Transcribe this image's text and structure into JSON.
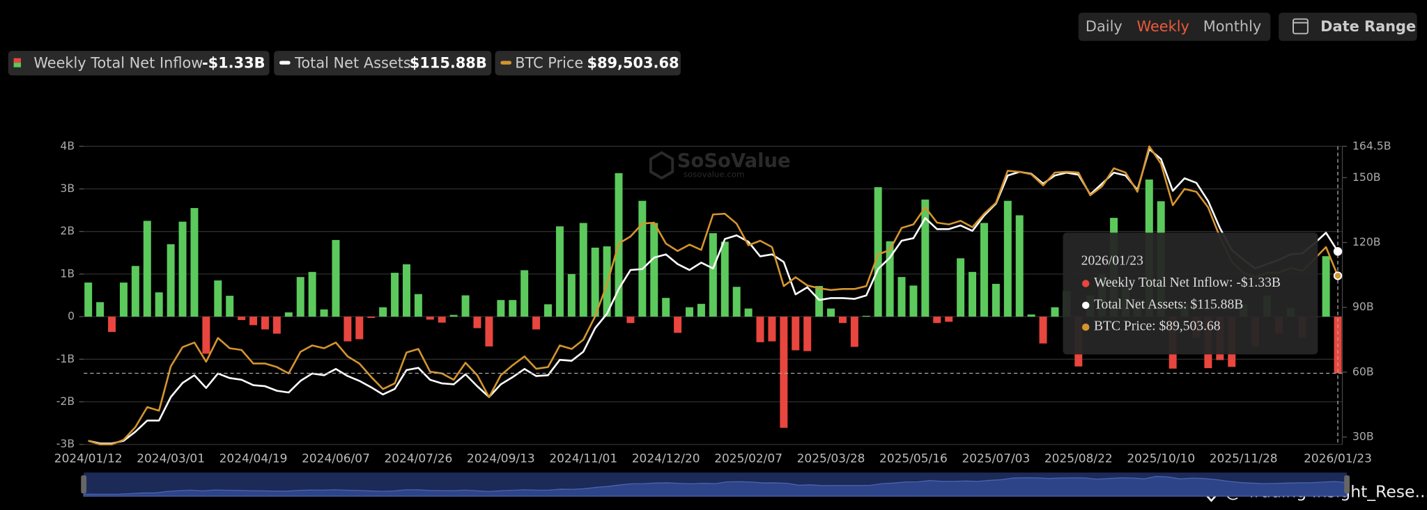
{
  "chart_data": {
    "type": "bar",
    "categories": [
      "2024/01/12",
      null,
      null,
      null,
      null,
      null,
      null,
      "2024/03/01",
      null,
      null,
      null,
      null,
      null,
      null,
      "2024/04/19",
      null,
      null,
      null,
      null,
      null,
      null,
      "2024/06/07",
      null,
      null,
      null,
      null,
      null,
      null,
      "2024/07/26",
      null,
      null,
      null,
      null,
      null,
      null,
      "2024/09/13",
      null,
      null,
      null,
      null,
      null,
      null,
      "2024/11/01",
      null,
      null,
      null,
      null,
      null,
      null,
      "2024/12/20",
      null,
      null,
      null,
      null,
      null,
      null,
      "2025/02/07",
      null,
      null,
      null,
      null,
      null,
      null,
      "2025/03/28",
      null,
      null,
      null,
      null,
      null,
      null,
      "2025/05/16",
      null,
      null,
      null,
      null,
      null,
      null,
      "2025/07/03",
      null,
      null,
      null,
      null,
      null,
      null,
      "2025/08/22",
      null,
      null,
      null,
      null,
      null,
      null,
      "2025/10/10",
      null,
      null,
      null,
      null,
      null,
      null,
      "2025/11/28",
      null,
      null,
      null,
      null,
      null,
      null,
      null,
      "2026/01/23"
    ],
    "series": [
      {
        "name": "Weekly Total Net Inflow",
        "type": "bar",
        "colors": {
          "positive": "#5cc95c",
          "negative": "#e8463e"
        },
        "latest_label": "-$1.33B",
        "values": [
          0.8,
          0.34,
          -0.36,
          0.8,
          1.19,
          2.25,
          0.57,
          1.7,
          2.23,
          2.55,
          -0.87,
          0.85,
          0.49,
          -0.08,
          -0.2,
          -0.3,
          -0.4,
          0.1,
          0.93,
          1.05,
          0.17,
          1.8,
          -0.58,
          -0.53,
          -0.03,
          0.22,
          1.03,
          1.23,
          0.53,
          -0.07,
          -0.14,
          0.04,
          0.5,
          -0.27,
          -0.7,
          0.39,
          0.39,
          1.09,
          -0.3,
          0.29,
          2.12,
          1.0,
          2.2,
          1.62,
          1.65,
          3.37,
          -0.15,
          2.72,
          2.2,
          0.44,
          -0.38,
          0.22,
          0.3,
          1.96,
          1.76,
          0.7,
          0.19,
          -0.6,
          -0.58,
          -2.61,
          -0.79,
          -0.81,
          0.72,
          0.19,
          -0.15,
          -0.71,
          0.02,
          3.04,
          1.77,
          0.93,
          0.73,
          2.75,
          -0.15,
          -0.12,
          1.37,
          1.05,
          2.2,
          0.77,
          2.72,
          2.38,
          0.05,
          -0.63,
          0.22,
          0.6,
          -1.17,
          0.5,
          1.0,
          2.32,
          0.8,
          0.4,
          3.22,
          2.71,
          -1.22,
          0.3,
          -0.5,
          -1.21,
          -1.02,
          -1.18,
          0.3,
          -0.7,
          0.5,
          -0.4,
          0.2,
          -0.5,
          0.0,
          1.42,
          -1.33
        ]
      },
      {
        "name": "Total Net Assets",
        "type": "line",
        "color": "#ffffff",
        "axis": "y2",
        "latest_label": "$115.88B",
        "values": [
          28.3,
          27,
          27,
          28.3,
          32.5,
          37.6,
          37.6,
          48.5,
          55,
          58.6,
          52.7,
          59.4,
          57.3,
          56.5,
          54,
          53.5,
          51.4,
          50.6,
          56,
          59.4,
          58.6,
          61.5,
          58.2,
          56,
          53,
          49.7,
          52.3,
          61,
          62,
          56.5,
          54.8,
          54.4,
          59,
          53.5,
          48.5,
          54.4,
          57.7,
          61.5,
          58.2,
          58.6,
          65.7,
          65.3,
          69.5,
          80.4,
          87,
          98.5,
          107.3,
          107.7,
          113,
          114.5,
          110,
          107.3,
          110.7,
          108,
          121.6,
          123.3,
          120.3,
          113.6,
          114.5,
          111,
          96,
          99.3,
          93.4,
          94.3,
          94.3,
          93.9,
          95.5,
          107.7,
          113,
          120.8,
          122,
          131.3,
          126.2,
          126.2,
          127.9,
          125.4,
          132.5,
          138,
          151,
          152.7,
          151.8,
          147.2,
          151,
          152.3,
          151.4,
          142.2,
          147.2,
          152.3,
          151,
          144.3,
          163.2,
          158.6,
          143.9,
          149.7,
          147.6,
          139.2,
          126.6,
          116.6,
          112,
          108,
          110,
          112,
          114.5,
          115,
          119.5,
          124.5,
          115.88
        ]
      },
      {
        "name": "BTC Price",
        "type": "line",
        "color": "#d4952e",
        "axis": "y3",
        "latest_label": "$89,503.68",
        "values": [
          43000,
          42000,
          42000,
          43300,
          46900,
          52500,
          51500,
          64000,
          69400,
          70700,
          65300,
          72000,
          69100,
          68600,
          64800,
          64800,
          63800,
          62000,
          68100,
          69900,
          69100,
          70700,
          66800,
          64800,
          61000,
          57600,
          59200,
          67900,
          68900,
          62500,
          62000,
          60200,
          65000,
          61500,
          55300,
          61500,
          64300,
          66800,
          63300,
          63800,
          69900,
          68900,
          71500,
          78100,
          87100,
          98600,
          100600,
          104200,
          104500,
          98600,
          96500,
          98300,
          96800,
          106800,
          107000,
          104200,
          98100,
          99400,
          97600,
          86600,
          89100,
          86800,
          86000,
          85500,
          85800,
          85800,
          86600,
          95500,
          96800,
          103000,
          104000,
          108800,
          104500,
          104000,
          105000,
          103200,
          107000,
          110100,
          119100,
          118800,
          118100,
          115000,
          118600,
          118800,
          118600,
          112200,
          114700,
          119800,
          118600,
          113200,
          126000,
          121100,
          109400,
          114000,
          113200,
          108800,
          100400,
          93500,
          90400,
          89100,
          90400,
          90400,
          91700,
          90900,
          94200,
          97600,
          89503.68
        ]
      }
    ],
    "ylim": [
      -3,
      4
    ],
    "yticks": [
      {
        "value": -3,
        "label": "-3B"
      },
      {
        "value": -2,
        "label": "-2B"
      },
      {
        "value": -1,
        "label": "-1B"
      },
      0,
      {
        "value": 1,
        "label": "1B"
      },
      {
        "value": 2,
        "label": "2B"
      },
      {
        "value": 3,
        "label": "3B"
      },
      {
        "value": 4,
        "label": "4B"
      }
    ],
    "y2lim": [
      26.6,
      164.5
    ],
    "y2ticks": [
      {
        "value": 30,
        "label": "30B"
      },
      {
        "value": 60,
        "label": "60B"
      },
      {
        "value": 90,
        "label": "90B"
      },
      {
        "value": 120,
        "label": "120B"
      },
      {
        "value": 150,
        "label": "150B"
      },
      {
        "value": 164.5,
        "label": "164.5B"
      }
    ],
    "y3lim": [
      42000,
      126000
    ],
    "grid": true,
    "tooltip": {
      "date": "2026/01/23",
      "lines": [
        "Weekly Total Net Inflow: -$1.33B",
        "Total Net Assets: $115.88B",
        "BTC Price: $89,503.68"
      ]
    }
  },
  "ui": {
    "tabs": [
      "Daily",
      "Weekly",
      "Monthly"
    ],
    "active_tab": 1,
    "date_range": "Date Range",
    "watermark": {
      "name": "SoSoValue",
      "url": "sosovalue.com"
    },
    "footer": "@ Trading Insight_Rese..."
  }
}
